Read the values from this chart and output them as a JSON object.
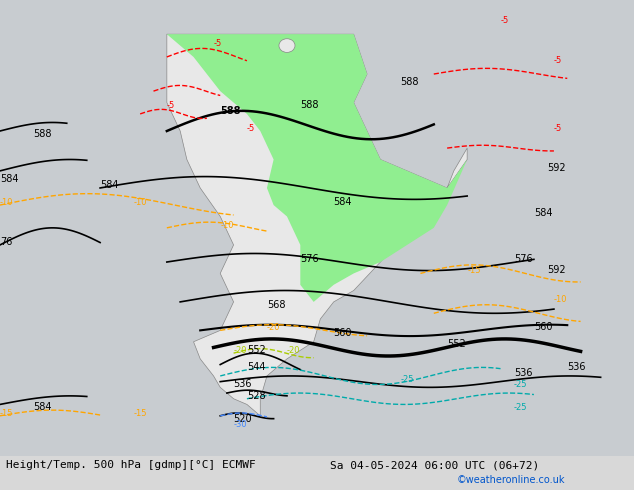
{
  "title_left": "Height/Temp. 500 hPa [gdmp][°C] ECMWF",
  "title_right": "Sa 04-05-2024 06:00 UTC (06+72)",
  "credit": "©weatheronline.co.uk",
  "background_color": "#d8d8d8",
  "land_color": "#e8e8e8",
  "green_area_color": "#90ee90",
  "map_extent": [
    -100,
    -20,
    -60,
    15
  ],
  "figsize": [
    6.34,
    4.9
  ],
  "dpi": 100
}
